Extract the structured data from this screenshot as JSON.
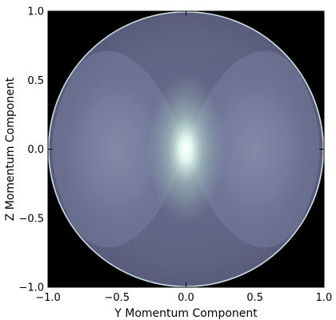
{
  "chart_data": {
    "type": "heatmap",
    "title": "",
    "xlabel": "Y Momentum Component",
    "ylabel": "Z Momentum Component",
    "xlim": [
      -1.0,
      1.0
    ],
    "ylim": [
      -1.0,
      1.0
    ],
    "x_ticks": [
      "−1.0",
      "−0.5",
      "0.0",
      "0.5",
      "1.0"
    ],
    "x_tick_values": [
      -1.0,
      -0.5,
      0.0,
      0.5,
      1.0
    ],
    "y_ticks": [
      "−1.0",
      "−0.5",
      "0.0",
      "0.5",
      "1.0"
    ],
    "y_tick_values": [
      -1.0,
      -0.5,
      0.0,
      0.5,
      1.0
    ],
    "grid": false,
    "background_color": "#000000",
    "colormap": "bone",
    "colormap_stops": [
      "#000000",
      "#3a3a58",
      "#7a7ea2",
      "#b9d6d0",
      "#ffffff"
    ],
    "disk_radius": 1.0,
    "rim_color": "#c8e0e2",
    "peak_center": [
      0.0,
      0.0
    ]
  }
}
